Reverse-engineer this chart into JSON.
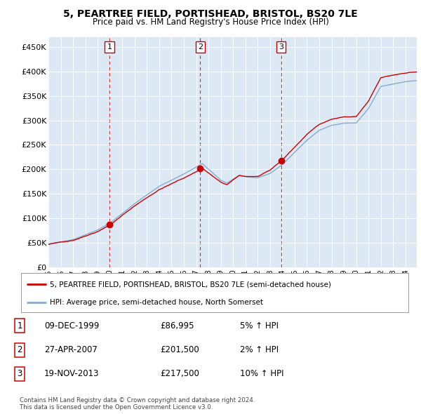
{
  "title": "5, PEARTREE FIELD, PORTISHEAD, BRISTOL, BS20 7LE",
  "subtitle": "Price paid vs. HM Land Registry's House Price Index (HPI)",
  "plot_bg_color": "#dce9f5",
  "ylim": [
    0,
    470000
  ],
  "yticks": [
    0,
    50000,
    100000,
    150000,
    200000,
    250000,
    300000,
    350000,
    400000,
    450000
  ],
  "ytick_labels": [
    "£0",
    "£50K",
    "£100K",
    "£150K",
    "£200K",
    "£250K",
    "£300K",
    "£350K",
    "£400K",
    "£450K"
  ],
  "sale_prices": [
    86995,
    201500,
    217500
  ],
  "sale_labels": [
    "1",
    "2",
    "3"
  ],
  "sale_year_floats": [
    1999.958,
    2007.327,
    2013.893
  ],
  "legend_property": "5, PEARTREE FIELD, PORTISHEAD, BRISTOL, BS20 7LE (semi-detached house)",
  "legend_hpi": "HPI: Average price, semi-detached house, North Somerset",
  "table_rows": [
    [
      "1",
      "09-DEC-1999",
      "£86,995",
      "5% ↑ HPI"
    ],
    [
      "2",
      "27-APR-2007",
      "£201,500",
      "2% ↑ HPI"
    ],
    [
      "3",
      "19-NOV-2013",
      "£217,500",
      "10% ↑ HPI"
    ]
  ],
  "footer": "Contains HM Land Registry data © Crown copyright and database right 2024.\nThis data is licensed under the Open Government Licence v3.0.",
  "property_color": "#cc0000",
  "hpi_color": "#88aacc",
  "vline_color": "#cc0000"
}
